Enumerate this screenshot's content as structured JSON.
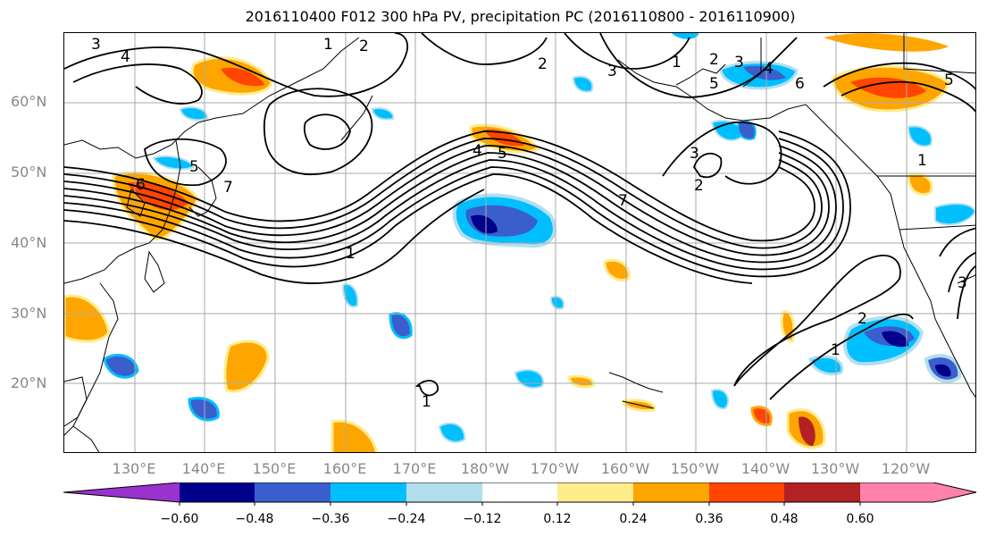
{
  "title": "2016110400 F012 300 hPa PV, precipitation PC (2016110800 - 2016110900)",
  "latitude_labels": [
    "60°N",
    "50°N",
    "40°N",
    "30°N",
    "20°N"
  ],
  "longitude_labels": [
    "130°E",
    "140°E",
    "150°E",
    "160°E",
    "170°E",
    "180°W",
    "170°W",
    "160°W",
    "150°W",
    "140°W",
    "130°W",
    "120°W"
  ],
  "contour_labels": [
    "3",
    "4",
    "1",
    "2",
    "5",
    "6",
    "7",
    "1",
    "4",
    "5",
    "3",
    "2",
    "1",
    "2",
    "3",
    "4",
    "5",
    "6",
    "1",
    "5",
    "3",
    "2",
    "7",
    "1",
    "2",
    "1",
    "3"
  ],
  "colorbar": {
    "ticks": [
      "−0.60",
      "−0.48",
      "−0.36",
      "−0.24",
      "−0.12",
      "0.12",
      "0.24",
      "0.36",
      "0.48",
      "0.60"
    ],
    "colors": [
      "#9a32cd",
      "#00008b",
      "#3a5fcd",
      "#00bfff",
      "#b2dfee",
      "#ffffff",
      "#ffec8b",
      "#ffa500",
      "#ff4500",
      "#b22222",
      "#ff82ab"
    ]
  },
  "colors": {
    "coast": "#000000",
    "grid": "#aaaaaa",
    "contour": "#000000"
  }
}
